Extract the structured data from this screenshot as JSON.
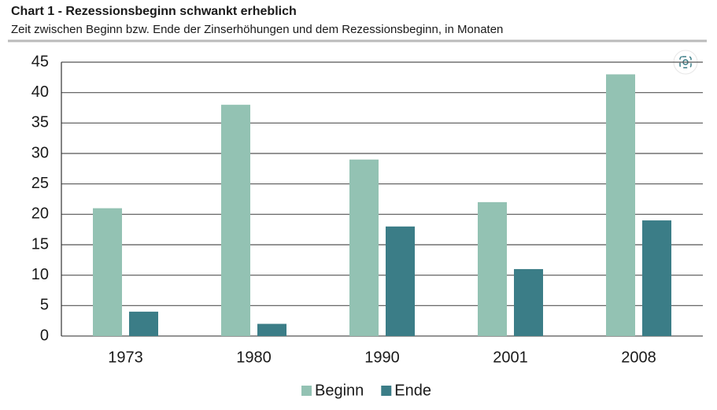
{
  "chart_data": {
    "type": "bar",
    "title": "Chart 1 - Rezessionsbeginn schwankt erheblich",
    "subtitle": "Zeit zwischen Beginn bzw. Ende der Zinserhöhungen und dem Rezessionsbeginn, in Monaten",
    "categories": [
      "1973",
      "1980",
      "1990",
      "2001",
      "2008"
    ],
    "series": [
      {
        "name": "Beginn",
        "color": "#93c2b3",
        "values": [
          21,
          38,
          29,
          22,
          43
        ]
      },
      {
        "name": "Ende",
        "color": "#3b7d87",
        "values": [
          4,
          2,
          18,
          11,
          19
        ]
      }
    ],
    "ylim": [
      0,
      45
    ],
    "yticks": [
      0,
      5,
      10,
      15,
      20,
      25,
      30,
      35,
      40,
      45
    ],
    "grid": true
  }
}
